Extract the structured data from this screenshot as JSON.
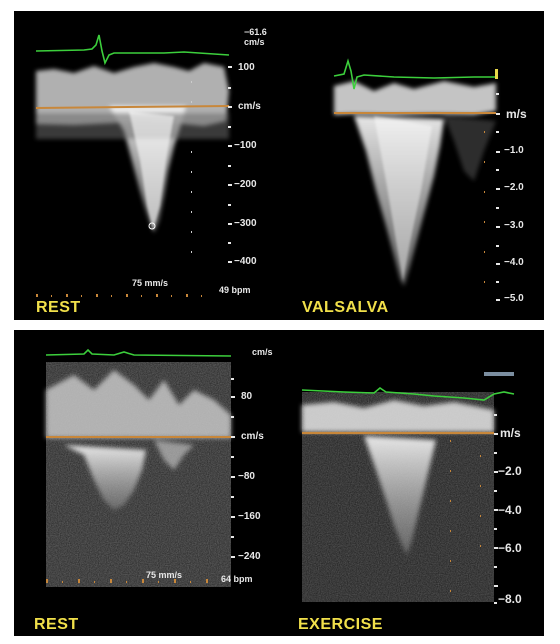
{
  "panels": {
    "top_left": {
      "label": "REST",
      "top_value": "−61.6",
      "top_unit": "cm/s",
      "unit": "cm/s",
      "scale": [
        "100",
        "cm/s",
        "−100",
        "−200",
        "−300",
        "−400"
      ],
      "sweep": "75 mm/s",
      "hr": "49 bpm"
    },
    "top_right": {
      "label": "VALSALVA",
      "unit": "m/s",
      "scale": [
        "m/s",
        "−1.0",
        "−2.0",
        "−3.0",
        "−4.0",
        "−5.0"
      ]
    },
    "bottom_left": {
      "label": "REST",
      "top_unit": "cm/s",
      "scale": [
        "80",
        "cm/s",
        "−80",
        "−160",
        "−240"
      ],
      "sweep": "75 mm/s",
      "hr": "64 bpm"
    },
    "bottom_right": {
      "label": "EXERCISE",
      "scale": [
        "m/s",
        "−2.0",
        "−4.0",
        "−6.0",
        "−8.0"
      ]
    }
  },
  "colors": {
    "label": "#f1e04a",
    "ecg": "#3ccf3c",
    "baseline": "#c8873a",
    "doppler": "#e6e6e6",
    "background": "#000000"
  }
}
